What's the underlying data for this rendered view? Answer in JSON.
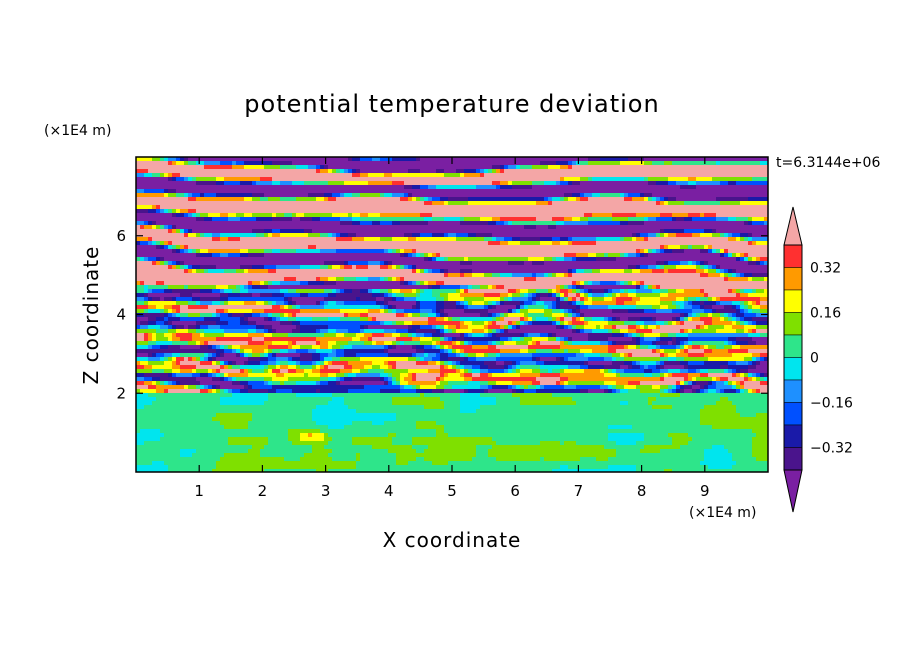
{
  "chart_data": {
    "type": "heatmap",
    "title": "potential temperature deviation",
    "xlabel": "X coordinate",
    "ylabel": "Z coordinate",
    "x_unit": "(×1E4 m)",
    "y_unit": "(×1E4 m)",
    "time_label": "t=6.3144e+06",
    "xlim": [
      0,
      10
    ],
    "ylim": [
      0,
      8
    ],
    "x_ticks": [
      "1",
      "2",
      "3",
      "4",
      "5",
      "6",
      "7",
      "8",
      "9"
    ],
    "y_ticks": [
      "2",
      "4",
      "6"
    ],
    "colorbar": {
      "labels": [
        "0.32",
        "0.16",
        "0",
        "-0.16",
        "-0.32"
      ],
      "levels": [
        {
          "value_range": "< -0.40",
          "color": "#7a1fa2"
        },
        {
          "value_range": "-0.40 to -0.32",
          "color": "#4a148c"
        },
        {
          "value_range": "-0.32 to -0.24",
          "color": "#1a1aa8"
        },
        {
          "value_range": "-0.24 to -0.16",
          "color": "#0050ff"
        },
        {
          "value_range": "-0.16 to -0.08",
          "color": "#1e90ff"
        },
        {
          "value_range": "-0.08 to 0",
          "color": "#00e5ee"
        },
        {
          "value_range": "0 to 0.08",
          "color": "#2ee58a"
        },
        {
          "value_range": "0.08 to 0.16",
          "color": "#7fe000"
        },
        {
          "value_range": "0.16 to 0.24",
          "color": "#ffff00"
        },
        {
          "value_range": "0.24 to 0.32",
          "color": "#ff9a00"
        },
        {
          "value_range": "0.32 to 0.40",
          "color": "#ff3030"
        },
        {
          "value_range": "> 0.40",
          "color": "#f4a6a6"
        }
      ]
    },
    "regions": [
      {
        "z_range": [
          0,
          2
        ],
        "dominant_levels": [
          "0 to 0.08",
          "0.08 to 0.16"
        ],
        "description_type": "mixed layer"
      },
      {
        "z_range": [
          2,
          4.5
        ],
        "dominant_levels": [
          "< -0.40",
          "> 0.40",
          "-0.08 to 0",
          "0.16 to 0.24",
          "0.24 to 0.32"
        ],
        "description_type": "turbulent layer"
      },
      {
        "z_range": [
          4.5,
          8
        ],
        "dominant_levels": [
          "< -0.40",
          "> 0.40"
        ],
        "description_type": "stratified bands"
      }
    ]
  }
}
